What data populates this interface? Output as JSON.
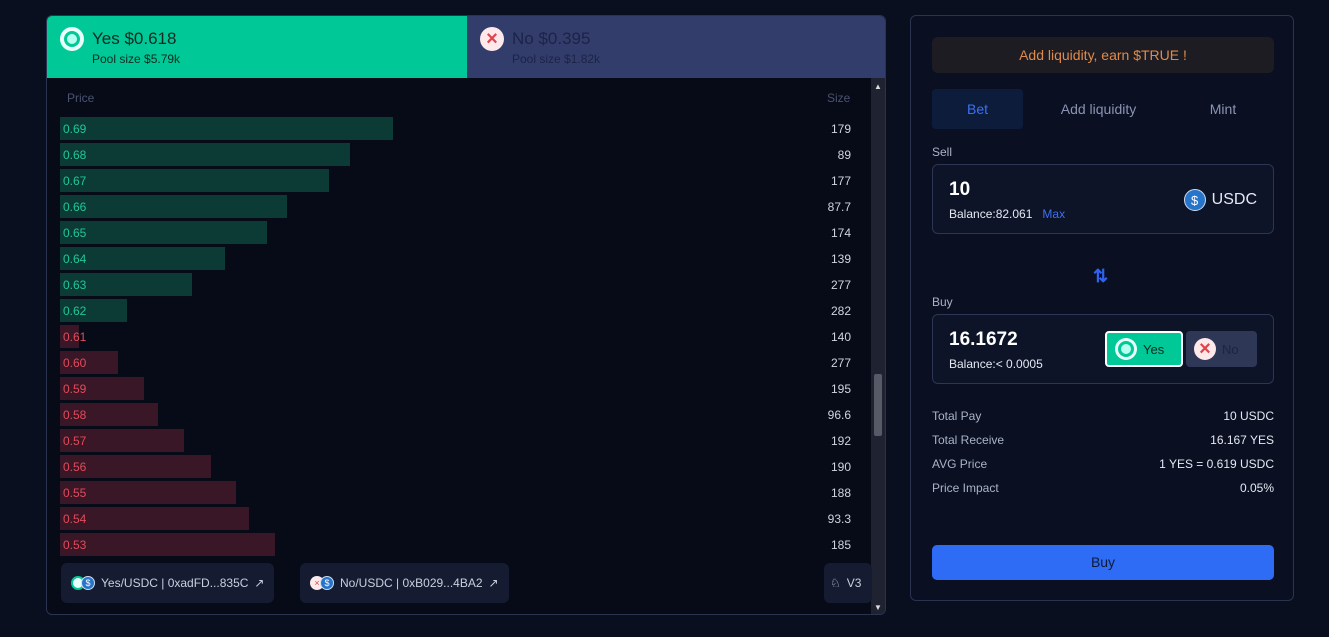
{
  "outcomes": {
    "yes": {
      "title": "Yes $0.618",
      "pool": "Pool size $5.79k"
    },
    "no": {
      "title": "No $0.395",
      "pool": "Pool size $1.82k"
    }
  },
  "book": {
    "price_header": "Price",
    "size_header": "Size",
    "bids": [
      {
        "price": "0.69",
        "size": 179
      },
      {
        "price": "0.68",
        "size": 89
      },
      {
        "price": "0.67",
        "size": 177
      },
      {
        "price": "0.66",
        "size": 87.7
      },
      {
        "price": "0.65",
        "size": 174
      },
      {
        "price": "0.64",
        "size": 139
      },
      {
        "price": "0.63",
        "size": 277
      },
      {
        "price": "0.62",
        "size": 282
      }
    ],
    "asks": [
      {
        "price": "0.61",
        "size": 140
      },
      {
        "price": "0.60",
        "size": 277
      },
      {
        "price": "0.59",
        "size": 195
      },
      {
        "price": "0.58",
        "size": 96.6
      },
      {
        "price": "0.57",
        "size": 192
      },
      {
        "price": "0.56",
        "size": 190
      },
      {
        "price": "0.55",
        "size": 188
      },
      {
        "price": "0.54",
        "size": 93.3
      },
      {
        "price": "0.53",
        "size": 185
      }
    ],
    "colors": {
      "bid": "#1fc79a",
      "ask": "#e34a5a"
    }
  },
  "pools": {
    "yes": "Yes/USDC | 0xadFD...835C",
    "no": "No/USDC | 0xB029...4BA2",
    "version": "V3"
  },
  "panel": {
    "promo": "Add liquidity, earn $TRUE !",
    "tabs": [
      "Bet",
      "Add liquidity",
      "Mint"
    ],
    "sell": {
      "label": "Sell",
      "amount": "10",
      "balance": "Balance:82.061",
      "max": "Max",
      "token": "USDC"
    },
    "buy": {
      "label": "Buy",
      "amount": "16.1672",
      "balance": "Balance:< 0.0005",
      "yes": "Yes",
      "no": "No"
    },
    "summary": [
      {
        "k": "Total Pay",
        "v": "10 USDC"
      },
      {
        "k": "Total Receive",
        "v": "16.167 YES"
      },
      {
        "k": "AVG Price",
        "v": "1 YES = 0.619 USDC"
      },
      {
        "k": "Price Impact",
        "v": "0.05%"
      }
    ],
    "button": "Buy"
  }
}
